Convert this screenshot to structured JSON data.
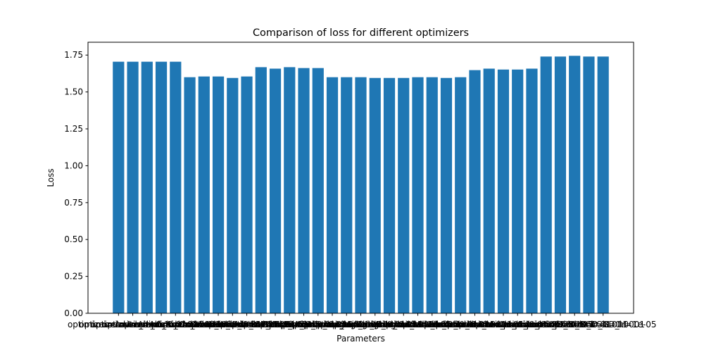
{
  "chart_data": {
    "type": "bar",
    "title": "Comparison of loss for different optimizers",
    "xlabel": "Parameters",
    "ylabel": "Loss",
    "ylim": [
      0,
      1.837
    ],
    "yticks": [
      "0.00",
      "0.25",
      "0.50",
      "0.75",
      "1.00",
      "1.25",
      "1.50",
      "1.75"
    ],
    "categories": [
      "optimizer=Adam_lr=0.1",
      "optimizer=Adam_lr=0.01",
      "optimizer=Adam_lr=0.001",
      "optimizer=Adam_lr=0.0001",
      "optimizer=Adam_lr=1e-05",
      "optimizer=AdamW_lr=0.1",
      "optimizer=AdamW_lr=0.01",
      "optimizer=AdamW_lr=0.001",
      "optimizer=AdamW_lr=0.0001",
      "optimizer=AdamW_lr=1e-05",
      "optimizer=RMSprop_lr=0.1",
      "optimizer=RMSprop_lr=0.01",
      "optimizer=RMSprop_lr=0.001",
      "optimizer=RMSprop_lr=0.0001",
      "optimizer=RMSprop_lr=1e-05",
      "optimizer=Adagrad_lr=0.1",
      "optimizer=Adagrad_lr=0.01",
      "optimizer=Adagrad_lr=0.001",
      "optimizer=Adagrad_lr=0.0001",
      "optimizer=Adagrad_lr=1e-05",
      "optimizer=Adadelta_lr=0.1",
      "optimizer=Adadelta_lr=0.01",
      "optimizer=Adadelta_lr=0.001",
      "optimizer=Adadelta_lr=0.0001",
      "optimizer=Adadelta_lr=1e-05",
      "optimizer=Adamax_lr=0.1",
      "optimizer=Adamax_lr=0.01",
      "optimizer=Adamax_lr=0.001",
      "optimizer=Adamax_lr=0.0001",
      "optimizer=Adamax_lr=1e-05",
      "optimizer=SGD_lr=0.1",
      "optimizer=SGD_lr=0.01",
      "optimizer=SGD_lr=0.001",
      "optimizer=SGD_lr=0.0001",
      "optimizer=SGD_lr=1e-05"
    ],
    "values": [
      1.705,
      1.705,
      1.705,
      1.705,
      1.705,
      1.6,
      1.605,
      1.605,
      1.595,
      1.605,
      1.668,
      1.658,
      1.668,
      1.662,
      1.662,
      1.6,
      1.6,
      1.6,
      1.595,
      1.595,
      1.595,
      1.6,
      1.6,
      1.595,
      1.6,
      1.648,
      1.658,
      1.652,
      1.652,
      1.658,
      1.74,
      1.74,
      1.745,
      1.74,
      1.74
    ]
  }
}
